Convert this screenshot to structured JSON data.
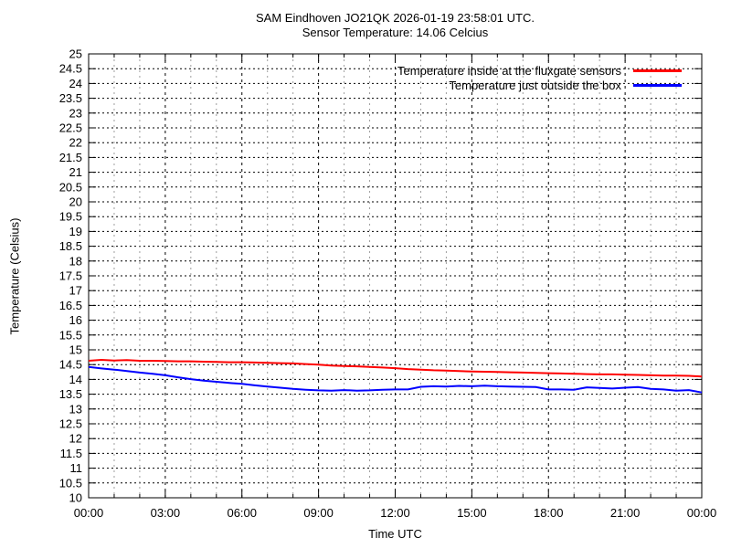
{
  "title_line1": "SAM Eindhoven JO21QK 2026-01-19 23:58:01 UTC.",
  "title_line2": "Sensor Temperature: 14.06 Celcius",
  "sensor_temperature": "14.06",
  "colors": {
    "series_inside": "#ff0000",
    "series_outside": "#0000ff",
    "grid_major": "#000000",
    "grid_minor": "#9e9e9e",
    "border": "#000000",
    "background": "#ffffff"
  },
  "chart_data": {
    "type": "line",
    "title": "SAM Eindhoven JO21QK 2026-01-19 23:58:01 UTC. Sensor Temperature: 14.06 Celcius",
    "xlabel": "Time UTC",
    "ylabel": "Temperature (Celsius)",
    "ylim": [
      10,
      25
    ],
    "y_tick_step": 0.5,
    "xlim_hours": [
      0,
      24
    ],
    "x_tick_hours": [
      0,
      3,
      6,
      9,
      12,
      15,
      18,
      21,
      24
    ],
    "x_tick_labels": [
      "00:00",
      "03:00",
      "06:00",
      "09:00",
      "12:00",
      "15:00",
      "18:00",
      "21:00",
      "00:00"
    ],
    "x_minor_tick_every_hours": 1,
    "grid": "dotted horizontal every 0.5 C (black), dashed vertical every hour (gray) with black dashed at 3-hour majors",
    "legend_position": "top-right-inside",
    "series": [
      {
        "name": "Temperature inside at the fluxgate sensors",
        "color": "#ff0000",
        "x_hours": [
          0,
          0.5,
          1,
          1.5,
          2,
          2.5,
          3,
          3.5,
          4,
          4.5,
          5,
          5.5,
          6,
          6.5,
          7,
          7.5,
          8,
          8.5,
          9,
          9.5,
          10,
          10.5,
          11,
          11.5,
          12,
          12.5,
          13,
          13.5,
          14,
          14.5,
          15,
          15.5,
          16,
          16.5,
          17,
          17.5,
          18,
          18.5,
          19,
          19.5,
          20,
          20.5,
          21,
          21.5,
          22,
          22.5,
          23,
          23.5,
          24
        ],
        "values": [
          14.63,
          14.66,
          14.64,
          14.65,
          14.63,
          14.63,
          14.62,
          14.61,
          14.61,
          14.6,
          14.59,
          14.58,
          14.58,
          14.57,
          14.56,
          14.55,
          14.54,
          14.52,
          14.5,
          14.47,
          14.45,
          14.44,
          14.42,
          14.4,
          14.38,
          14.35,
          14.33,
          14.31,
          14.3,
          14.28,
          14.27,
          14.26,
          14.25,
          14.24,
          14.23,
          14.22,
          14.21,
          14.2,
          14.19,
          14.18,
          14.17,
          14.17,
          14.16,
          14.15,
          14.14,
          14.13,
          14.13,
          14.12,
          14.1
        ]
      },
      {
        "name": "Temperature just outside the box",
        "color": "#0000ff",
        "x_hours": [
          0,
          0.5,
          1,
          1.5,
          2,
          2.5,
          3,
          3.5,
          4,
          4.5,
          5,
          5.5,
          6,
          6.5,
          7,
          7.5,
          8,
          8.5,
          9,
          9.5,
          10,
          10.5,
          11,
          11.5,
          12,
          12.5,
          13,
          13.5,
          14,
          14.5,
          15,
          15.5,
          16,
          16.5,
          17,
          17.5,
          18,
          18.5,
          19,
          19.5,
          20,
          20.5,
          21,
          21.5,
          22,
          22.5,
          23,
          23.5,
          24
        ],
        "values": [
          14.42,
          14.37,
          14.33,
          14.28,
          14.23,
          14.19,
          14.14,
          14.07,
          14.01,
          13.96,
          13.92,
          13.88,
          13.85,
          13.8,
          13.76,
          13.72,
          13.68,
          13.65,
          13.63,
          13.62,
          13.64,
          13.62,
          13.63,
          13.65,
          13.66,
          13.66,
          13.75,
          13.77,
          13.76,
          13.78,
          13.77,
          13.79,
          13.77,
          13.76,
          13.75,
          13.74,
          13.66,
          13.66,
          13.65,
          13.73,
          13.71,
          13.69,
          13.72,
          13.74,
          13.68,
          13.66,
          13.62,
          13.64,
          13.56
        ]
      }
    ]
  }
}
